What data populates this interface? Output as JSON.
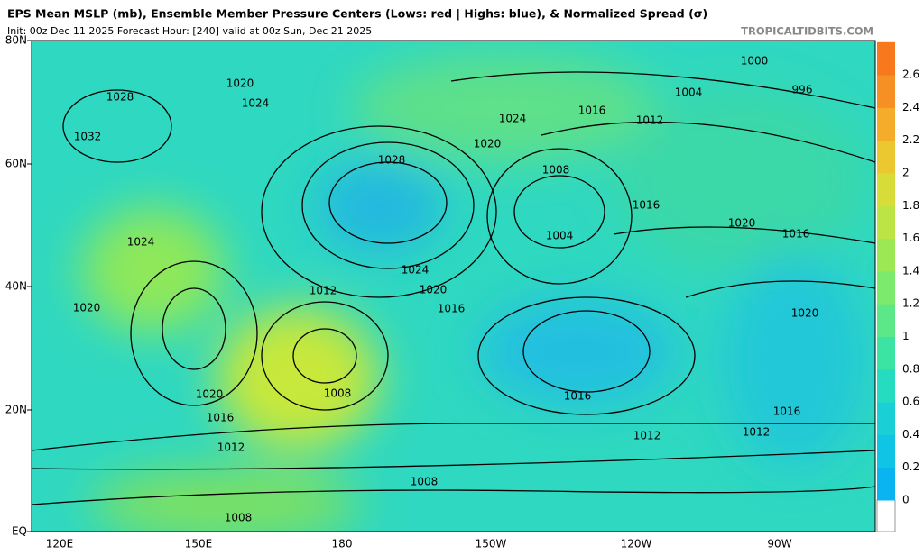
{
  "header": {
    "title": "EPS Mean MSLP (mb), Ensemble Member Pressure Centers (Lows: red | Highs: blue), & Normalized Spread (σ)",
    "subtitle": "Init: 00z Dec 11 2025   Forecast Hour: [240]   valid at 00z Sun, Dec 21 2025",
    "source": "TROPICALTIDBITS.COM"
  },
  "lat_labels": [
    "80N",
    "60N",
    "40N",
    "20N",
    "EQ"
  ],
  "lon_labels": [
    "120E",
    "150E",
    "180",
    "150W",
    "120W",
    "90W"
  ],
  "colorbar_ticks": [
    "0",
    "0.2",
    "0.4",
    "0.6",
    "0.8",
    "1",
    "1.2",
    "1.4",
    "1.6",
    "1.8",
    "2",
    "2.2",
    "2.4",
    "2.6"
  ],
  "isobar_labels": [
    "1028",
    "1024",
    "1020",
    "1016",
    "1012",
    "1008",
    "1020",
    "1016",
    "1012",
    "1004",
    "1008",
    "1016",
    "1012",
    "1008",
    "1008",
    "1020",
    "1024",
    "1028",
    "1032",
    "1020",
    "1024",
    "1000",
    "996",
    "1004",
    "1012",
    "1016",
    "1020",
    "1024",
    "1016",
    "1020",
    "1016",
    "1020",
    "1016",
    "1012"
  ]
}
